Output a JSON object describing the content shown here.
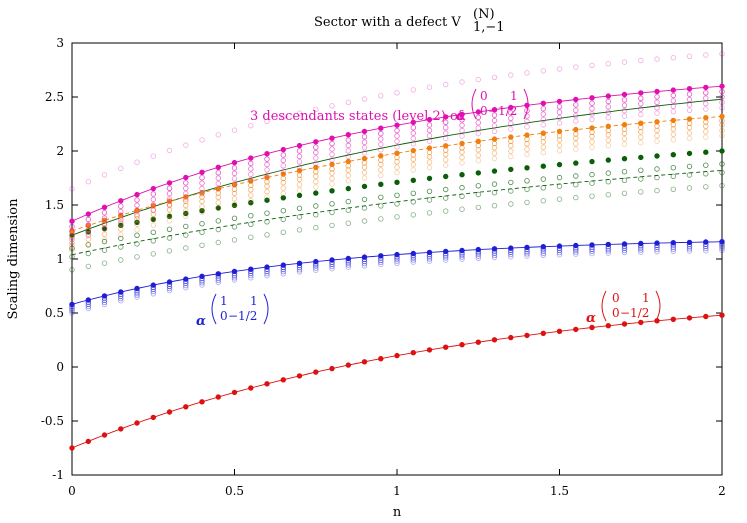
{
  "chart_data": {
    "type": "scatter",
    "title": "Sector with a defect V",
    "title_sup": "(N)",
    "title_sub": "1,−1",
    "xlabel": "n",
    "ylabel": "Scaling dimension",
    "xlim": [
      0,
      2
    ],
    "ylim": [
      -1,
      3
    ],
    "xticks": [
      "0",
      "0.5",
      "1",
      "1.5",
      "2"
    ],
    "yticks": [
      "-1",
      "-0.5",
      "0",
      "0.5",
      "1",
      "1.5",
      "2",
      "2.5",
      "3"
    ],
    "grid": false,
    "legend": "none",
    "series": [
      {
        "key": "red",
        "color": "#dd1111",
        "start": -0.75,
        "end": 0.48,
        "curvature": 0.55,
        "filled": true,
        "offsets": [
          0.0
        ],
        "curve": "solid",
        "curve_offset": 0.0
      },
      {
        "key": "blue",
        "color": "#1f1fd6",
        "start": 0.58,
        "end": 1.16,
        "curvature": 0.9,
        "filled": true,
        "offsets": [
          0.0,
          -0.02,
          -0.04,
          -0.06,
          -0.08
        ],
        "curve": "solid",
        "curve_offset": 0.0
      },
      {
        "key": "green",
        "color": "#0a5e0a",
        "start": 1.22,
        "end": 2.0,
        "curvature": 0.35,
        "filled": true,
        "offsets": [
          0.0,
          -0.12,
          -0.2,
          -0.32
        ],
        "curve": "dashed",
        "curve_offset": 0.18
      },
      {
        "key": "green-solid",
        "color": "#0a5e0a",
        "start": 1.22,
        "end": 2.48,
        "curvature": 0.45,
        "filled": false,
        "offsets": [],
        "curve": "solid",
        "curve_offset": 0.0
      },
      {
        "key": "orange",
        "color": "#f07f10",
        "start": 1.26,
        "end": 2.32,
        "curvature": 0.5,
        "filled": true,
        "offsets": [
          0.0,
          -0.04,
          -0.08,
          -0.13,
          -0.18
        ],
        "curve": "dashed",
        "curve_offset": 0.0
      },
      {
        "key": "magenta",
        "color": "#e010b0",
        "start": 1.35,
        "end": 2.6,
        "curvature": 0.6,
        "filled": true,
        "offsets": [
          0.0,
          -0.05,
          -0.1,
          -0.15,
          -0.2,
          0.3
        ],
        "curve": "solid",
        "curve_offset": 0.0
      }
    ],
    "annotations": {
      "magenta_text": "3 descendants states (level 2) of",
      "alpha": "α",
      "blue_matrix": [
        "1",
        "1",
        "0",
        "−1/2"
      ],
      "red_matrix": [
        "0",
        "1",
        "0",
        "−1/2"
      ],
      "magenta_matrix": [
        "0",
        "1",
        "0",
        "−1/2"
      ]
    }
  }
}
